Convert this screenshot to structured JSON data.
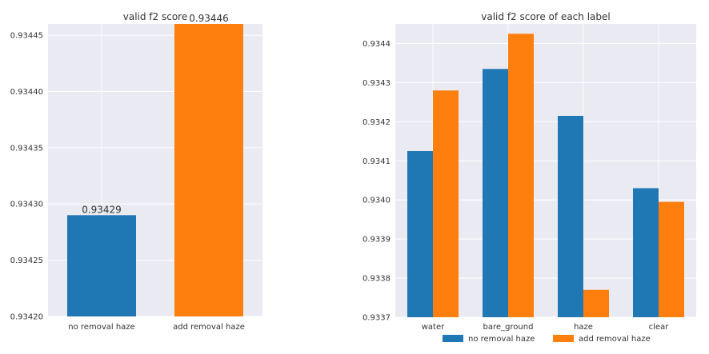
{
  "chart_data": [
    {
      "type": "bar",
      "title": "valid f2 score",
      "categories": [
        "no removal haze",
        "add removal haze"
      ],
      "values": [
        0.93429,
        0.93446
      ],
      "data_labels": [
        "0.93429",
        "0.93446"
      ],
      "colors": [
        "#1f77b4",
        "#ff7f0e"
      ],
      "ylim": [
        0.9342,
        0.93446
      ],
      "yticks": [
        0.9342,
        0.93425,
        0.9343,
        0.93435,
        0.9344,
        0.93445
      ],
      "ytick_labels": [
        "0.93420",
        "0.93425",
        "0.93430",
        "0.93435",
        "0.93440",
        "0.93445"
      ],
      "xlabel": "",
      "ylabel": "",
      "grid": true
    },
    {
      "type": "bar",
      "title": "valid f2 score of each label",
      "categories": [
        "water",
        "bare_ground",
        "haze",
        "clear"
      ],
      "series": [
        {
          "name": "no removal haze",
          "color": "#1f77b4",
          "values": [
            0.934125,
            0.934335,
            0.934215,
            0.93403
          ]
        },
        {
          "name": "add removal haze",
          "color": "#ff7f0e",
          "values": [
            0.93428,
            0.934425,
            0.93377,
            0.933995
          ]
        }
      ],
      "ylim": [
        0.9337,
        0.93445
      ],
      "yticks": [
        0.9337,
        0.9338,
        0.9339,
        0.934,
        0.9341,
        0.9342,
        0.9343,
        0.9344
      ],
      "ytick_labels": [
        "0.9337",
        "0.9338",
        "0.9339",
        "0.9340",
        "0.9341",
        "0.9342",
        "0.9343",
        "0.9344"
      ],
      "xlabel": "",
      "ylabel": "",
      "grid": true,
      "legend_position": "bottom"
    }
  ]
}
